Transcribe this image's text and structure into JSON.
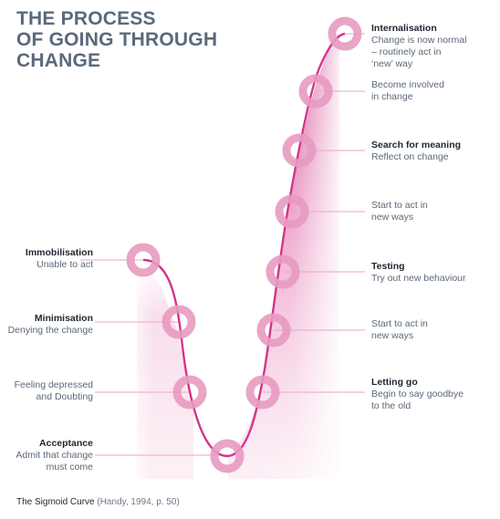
{
  "title_lines": [
    "THE PROCESS",
    "OF GOING THROUGH",
    "CHANGE"
  ],
  "stages_left": [
    {
      "heading": "Immobilisation",
      "body": "Unable to act"
    },
    {
      "heading": "Minimisation",
      "body": "Denying the change"
    },
    {
      "heading": "",
      "body": "Feeling depressed\nand Doubting"
    },
    {
      "heading": "Acceptance",
      "body": "Admit that change\nmust come"
    }
  ],
  "stages_right": [
    {
      "heading": "Internalisation",
      "body": "Change is now normal\n–  routinely act in\n‘new’ way"
    },
    {
      "heading": "",
      "body": "Become involved\nin change"
    },
    {
      "heading": "Search for meaning",
      "body": "Reflect on change"
    },
    {
      "heading": "",
      "body": "Start to act in\nnew ways"
    },
    {
      "heading": "Testing",
      "body": "Try out new behaviour"
    },
    {
      "heading": "",
      "body": "Start to act in\nnew ways"
    },
    {
      "heading": "Letting go",
      "body": "Begin to say goodbye\nto the old"
    }
  ],
  "caption": {
    "main": "The Sigmoid Curve",
    "cite": "(Handy, 1994, p. 50)"
  },
  "colors": {
    "curve": "#d6338a",
    "ring": "#e79ac0",
    "line": "#e9a6c6",
    "heading": "#1f2630",
    "text": "#5b6878",
    "title": "#5a6a7c"
  }
}
